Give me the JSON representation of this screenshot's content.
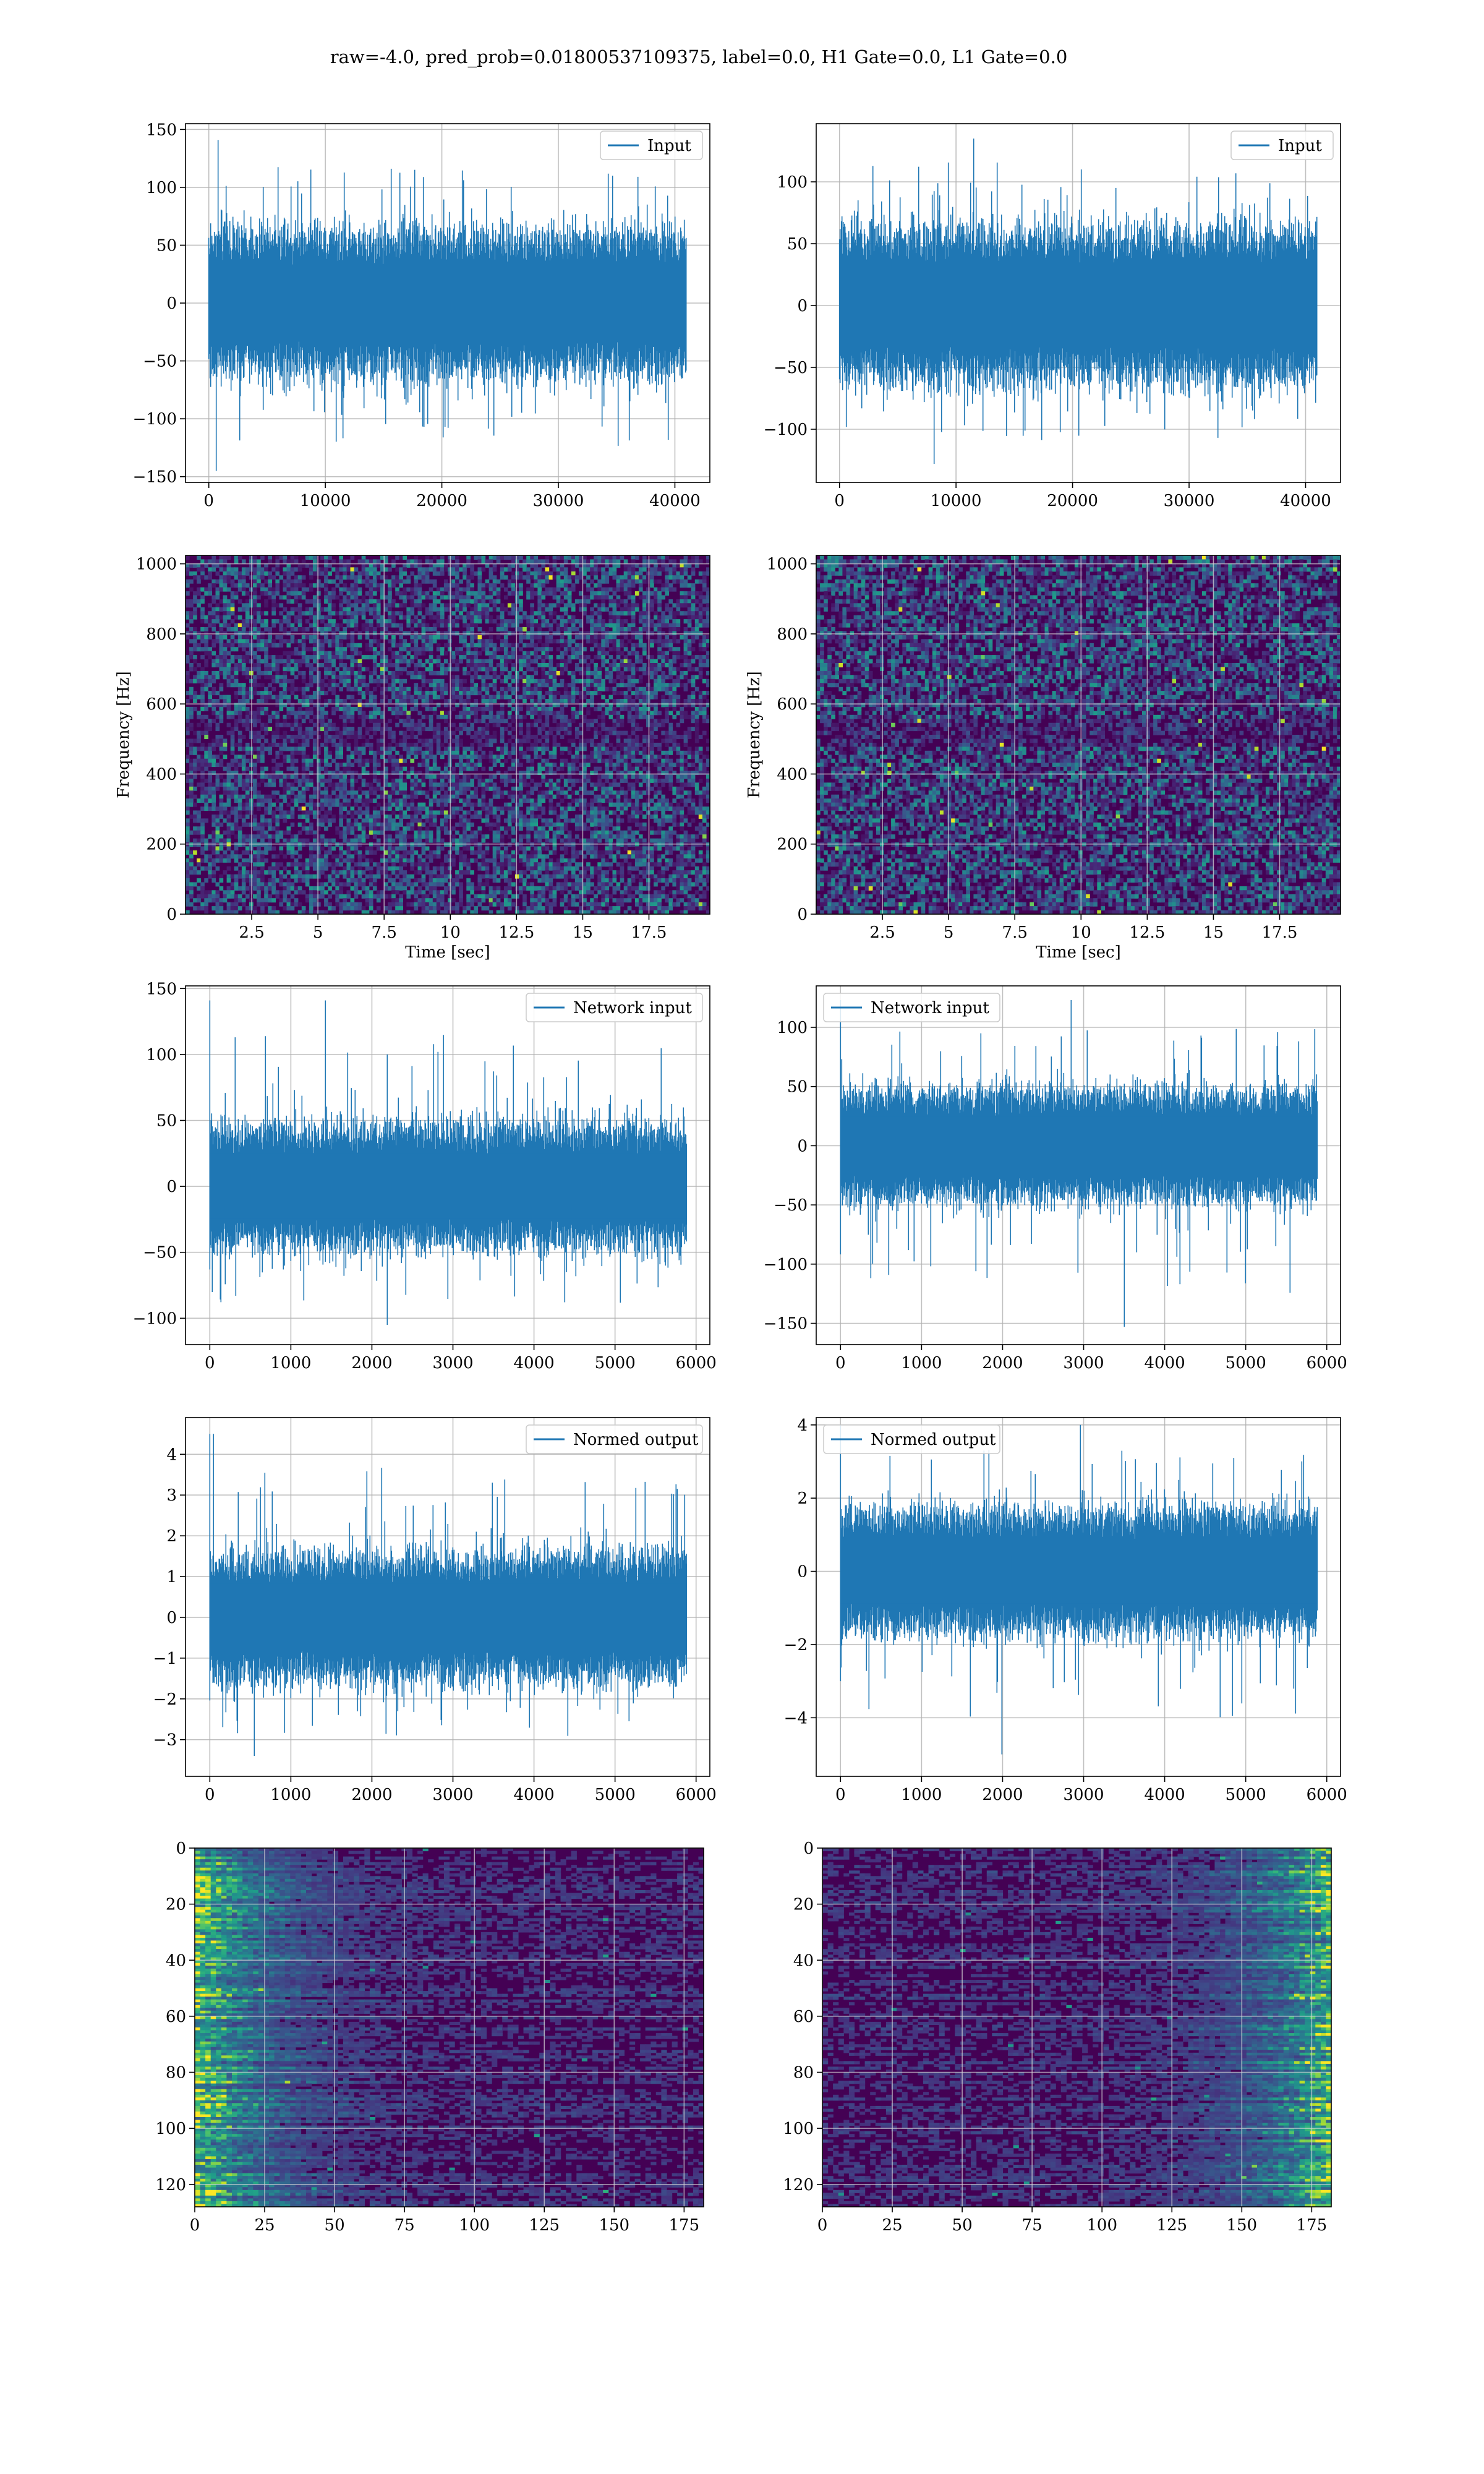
{
  "figure": {
    "suptitle": "raw=-4.0, pred_prob=0.01800537109375, label=0.0, H1 Gate=0.0, L1 Gate=0.0"
  },
  "colors": {
    "line": "#1f77b4",
    "grid": "#b0b0b0",
    "viridis_low": "#440154",
    "viridis_high": "#fde725"
  },
  "chart_data": [
    {
      "id": "input-h1",
      "type": "line",
      "legend": "Input",
      "legend_loc": "upper right",
      "grid": true,
      "series": [
        {
          "name": "Input",
          "n_points": 40960,
          "envelope": [
            -145,
            141
          ],
          "typical_band": [
            -60,
            60
          ]
        }
      ],
      "xlim": [
        -2000,
        43000
      ],
      "ylim": [
        -155,
        155
      ],
      "xticks": [
        0,
        10000,
        20000,
        30000,
        40000
      ],
      "yticks": [
        -150,
        -100,
        -50,
        0,
        50,
        100,
        150
      ]
    },
    {
      "id": "input-l1",
      "type": "line",
      "legend": "Input",
      "legend_loc": "upper right",
      "grid": true,
      "series": [
        {
          "name": "Input",
          "n_points": 40960,
          "envelope": [
            -128,
            135
          ],
          "typical_band": [
            -60,
            60
          ]
        }
      ],
      "xlim": [
        -2000,
        43000
      ],
      "ylim": [
        -143,
        147
      ],
      "xticks": [
        0,
        10000,
        20000,
        30000,
        40000
      ],
      "yticks": [
        -100,
        -50,
        0,
        50,
        100
      ]
    },
    {
      "id": "spectrogram-h1",
      "type": "heatmap",
      "xlabel": "Time [sec]",
      "ylabel": "Frequency [Hz]",
      "grid": true,
      "xlim": [
        0,
        19.8
      ],
      "ylim": [
        0,
        1024
      ],
      "xticks": [
        2.5,
        5.0,
        7.5,
        10.0,
        12.5,
        15.0,
        17.5
      ],
      "yticks": [
        0,
        200,
        400,
        600,
        800,
        1000
      ]
    },
    {
      "id": "spectrogram-l1",
      "type": "heatmap",
      "xlabel": "Time [sec]",
      "ylabel": "Frequency [Hz]",
      "grid": true,
      "xlim": [
        0,
        19.8
      ],
      "ylim": [
        0,
        1024
      ],
      "xticks": [
        2.5,
        5.0,
        7.5,
        10.0,
        12.5,
        15.0,
        17.5
      ],
      "yticks": [
        0,
        200,
        400,
        600,
        800,
        1000
      ]
    },
    {
      "id": "network-input-h1",
      "type": "line",
      "legend": "Network input",
      "legend_loc": "upper right",
      "grid": true,
      "series": [
        {
          "name": "Network input",
          "n_points": 5880,
          "envelope": [
            -105,
            141
          ],
          "typical_band": [
            -45,
            45
          ]
        }
      ],
      "xlim": [
        -300,
        6170
      ],
      "ylim": [
        -120,
        152
      ],
      "xticks": [
        0,
        1000,
        2000,
        3000,
        4000,
        5000,
        6000
      ],
      "yticks": [
        -100,
        -50,
        0,
        50,
        100,
        150
      ]
    },
    {
      "id": "network-input-l1",
      "type": "line",
      "legend": "Network input",
      "legend_loc": "upper left",
      "grid": true,
      "series": [
        {
          "name": "Network input",
          "n_points": 5880,
          "envelope": [
            -153,
            123
          ],
          "typical_band": [
            -45,
            45
          ]
        }
      ],
      "xlim": [
        -300,
        6170
      ],
      "ylim": [
        -168,
        135
      ],
      "xticks": [
        0,
        1000,
        2000,
        3000,
        4000,
        5000,
        6000
      ],
      "yticks": [
        -150,
        -100,
        -50,
        0,
        50,
        100
      ]
    },
    {
      "id": "normed-output-h1",
      "type": "line",
      "legend": "Normed output",
      "legend_loc": "upper right",
      "grid": true,
      "series": [
        {
          "name": "Normed output",
          "n_points": 5880,
          "envelope": [
            -3.4,
            4.5
          ],
          "typical_band": [
            -1.5,
            1.5
          ]
        }
      ],
      "xlim": [
        -300,
        6170
      ],
      "ylim": [
        -3.9,
        4.9
      ],
      "xticks": [
        0,
        1000,
        2000,
        3000,
        4000,
        5000,
        6000
      ],
      "yticks": [
        -3,
        -2,
        -1,
        0,
        1,
        2,
        3,
        4
      ]
    },
    {
      "id": "normed-output-l1",
      "type": "line",
      "legend": "Normed output",
      "legend_loc": "upper left",
      "grid": true,
      "series": [
        {
          "name": "Normed output",
          "n_points": 5880,
          "envelope": [
            -5.0,
            4.0
          ],
          "typical_band": [
            -1.6,
            1.6
          ]
        }
      ],
      "xlim": [
        -300,
        6170
      ],
      "ylim": [
        -5.6,
        4.2
      ],
      "xticks": [
        0,
        1000,
        2000,
        3000,
        4000,
        5000,
        6000
      ],
      "yticks": [
        -4,
        -2,
        0,
        2,
        4
      ]
    },
    {
      "id": "feature-map-h1",
      "type": "heatmap",
      "grid": true,
      "y_inverted": true,
      "xlim": [
        0,
        182
      ],
      "ylim": [
        128,
        0
      ],
      "bright_side": "left",
      "xticks": [
        0,
        25,
        50,
        75,
        100,
        125,
        150,
        175
      ],
      "yticks": [
        0,
        20,
        40,
        60,
        80,
        100,
        120
      ]
    },
    {
      "id": "feature-map-l1",
      "type": "heatmap",
      "grid": true,
      "y_inverted": true,
      "xlim": [
        0,
        182
      ],
      "ylim": [
        128,
        0
      ],
      "bright_side": "right",
      "xticks": [
        0,
        25,
        50,
        75,
        100,
        125,
        150,
        175
      ],
      "yticks": [
        0,
        20,
        40,
        60,
        80,
        100,
        120
      ]
    }
  ]
}
